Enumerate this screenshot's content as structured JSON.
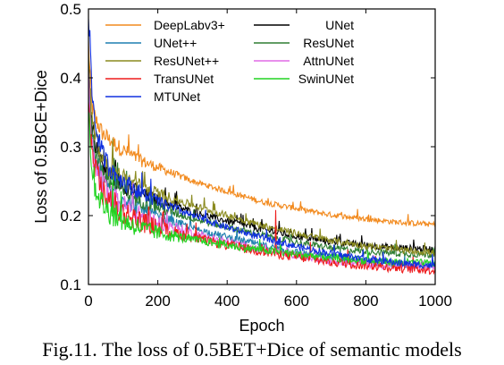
{
  "caption": "Fig.11. The loss of 0.5BET+Dice of semantic models",
  "chart_data": {
    "type": "line",
    "xlabel": "Epoch",
    "ylabel": "Loss of  0.5BCE+Dice",
    "xlim": [
      0,
      1000
    ],
    "ylim": [
      0.1,
      0.5
    ],
    "xticks": [
      0,
      200,
      400,
      600,
      800,
      1000
    ],
    "yticks": [
      0.1,
      0.2,
      0.3,
      0.4,
      0.5
    ],
    "xtick_labels": [
      "0",
      "200",
      "400",
      "600",
      "800",
      "1000"
    ],
    "ytick_labels": [
      "0.1",
      "0.2",
      "0.3",
      "0.4",
      "0.5"
    ],
    "grid": false,
    "legend_position": "top",
    "x": [
      0,
      5,
      10,
      20,
      40,
      60,
      100,
      150,
      200,
      300,
      400,
      500,
      600,
      700,
      800,
      900,
      1000
    ],
    "series": [
      {
        "name": "DeepLabv3+",
        "color": "#f28a1e",
        "noise": 0.004,
        "values": [
          0.45,
          0.4,
          0.36,
          0.34,
          0.32,
          0.31,
          0.295,
          0.28,
          0.27,
          0.25,
          0.235,
          0.22,
          0.21,
          0.201,
          0.195,
          0.19,
          0.187
        ]
      },
      {
        "name": "UNet",
        "color": "#000000",
        "noise": 0.005,
        "values": [
          0.42,
          0.37,
          0.33,
          0.3,
          0.275,
          0.26,
          0.245,
          0.232,
          0.222,
          0.205,
          0.192,
          0.18,
          0.17,
          0.162,
          0.157,
          0.153,
          0.151
        ]
      },
      {
        "name": "UNet++",
        "color": "#1f7fb0",
        "noise": 0.005,
        "values": [
          0.4,
          0.35,
          0.31,
          0.28,
          0.255,
          0.24,
          0.224,
          0.21,
          0.198,
          0.182,
          0.169,
          0.157,
          0.147,
          0.139,
          0.133,
          0.129,
          0.126
        ]
      },
      {
        "name": "ResUNet",
        "color": "#2e7d32",
        "noise": 0.005,
        "values": [
          0.41,
          0.36,
          0.32,
          0.29,
          0.265,
          0.25,
          0.235,
          0.222,
          0.212,
          0.196,
          0.183,
          0.172,
          0.161,
          0.153,
          0.148,
          0.145,
          0.143
        ]
      },
      {
        "name": "ResUNet++",
        "color": "#8a8a1f",
        "noise": 0.005,
        "values": [
          0.43,
          0.38,
          0.34,
          0.31,
          0.285,
          0.27,
          0.255,
          0.242,
          0.232,
          0.215,
          0.2,
          0.186,
          0.174,
          0.164,
          0.156,
          0.15,
          0.146
        ]
      },
      {
        "name": "AttnUNet",
        "color": "#e06ae6",
        "noise": 0.006,
        "values": [
          0.39,
          0.34,
          0.3,
          0.27,
          0.245,
          0.23,
          0.215,
          0.2,
          0.19,
          0.175,
          0.162,
          0.15,
          0.142,
          0.135,
          0.13,
          0.127,
          0.124
        ]
      },
      {
        "name": "TransUNet",
        "color": "#ee1c1c",
        "noise": 0.007,
        "values": [
          0.38,
          0.33,
          0.29,
          0.26,
          0.235,
          0.22,
          0.205,
          0.192,
          0.182,
          0.168,
          0.157,
          0.148,
          0.14,
          0.133,
          0.128,
          0.124,
          0.121
        ]
      },
      {
        "name": "SwinUNet",
        "color": "#22d422",
        "noise": 0.006,
        "values": [
          0.36,
          0.31,
          0.27,
          0.24,
          0.218,
          0.205,
          0.192,
          0.182,
          0.175,
          0.165,
          0.157,
          0.15,
          0.144,
          0.139,
          0.135,
          0.132,
          0.13
        ]
      },
      {
        "name": "MTUNet",
        "color": "#1030e0",
        "noise": 0.005,
        "values": [
          0.5,
          0.44,
          0.38,
          0.33,
          0.29,
          0.27,
          0.25,
          0.233,
          0.22,
          0.2,
          0.183,
          0.168,
          0.155,
          0.145,
          0.137,
          0.131,
          0.127
        ]
      }
    ],
    "spikes": [
      {
        "series": "TransUNet",
        "x": 540,
        "y": 0.208
      },
      {
        "series": "TransUNet",
        "x": 640,
        "y": 0.162
      },
      {
        "series": "UNet",
        "x": 440,
        "y": 0.203
      },
      {
        "series": "UNet",
        "x": 475,
        "y": 0.196
      },
      {
        "series": "UNet",
        "x": 500,
        "y": 0.195
      },
      {
        "series": "DeepLabv3+",
        "x": 590,
        "y": 0.22
      }
    ]
  }
}
